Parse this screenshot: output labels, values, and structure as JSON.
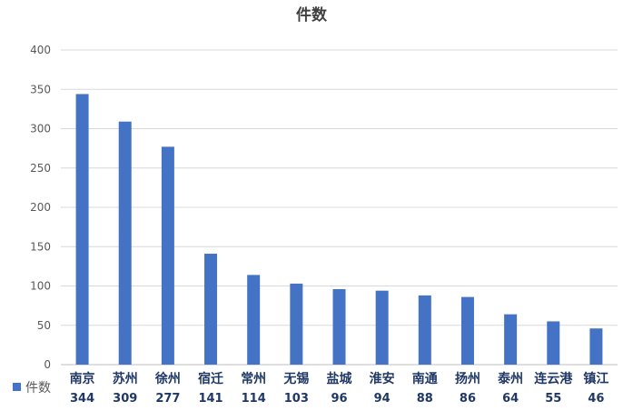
{
  "chart_data": {
    "type": "bar",
    "title": "件数",
    "categories": [
      "南京",
      "苏州",
      "徐州",
      "宿迁",
      "常州",
      "无锡",
      "盐城",
      "淮安",
      "南通",
      "扬州",
      "泰州",
      "连云港",
      "镇江"
    ],
    "series": [
      {
        "name": "件数",
        "values": [
          344,
          309,
          277,
          141,
          114,
          103,
          96,
          94,
          88,
          86,
          64,
          55,
          46
        ]
      }
    ],
    "xlabel": "",
    "ylabel": "",
    "ylim": [
      0,
      400
    ],
    "yticks": [
      0,
      50,
      100,
      150,
      200,
      250,
      300,
      350,
      400
    ],
    "grid": true,
    "legend": "bottom-left, data table",
    "colors": {
      "bar": "#4472c4",
      "grid": "#d9d9d9"
    }
  }
}
